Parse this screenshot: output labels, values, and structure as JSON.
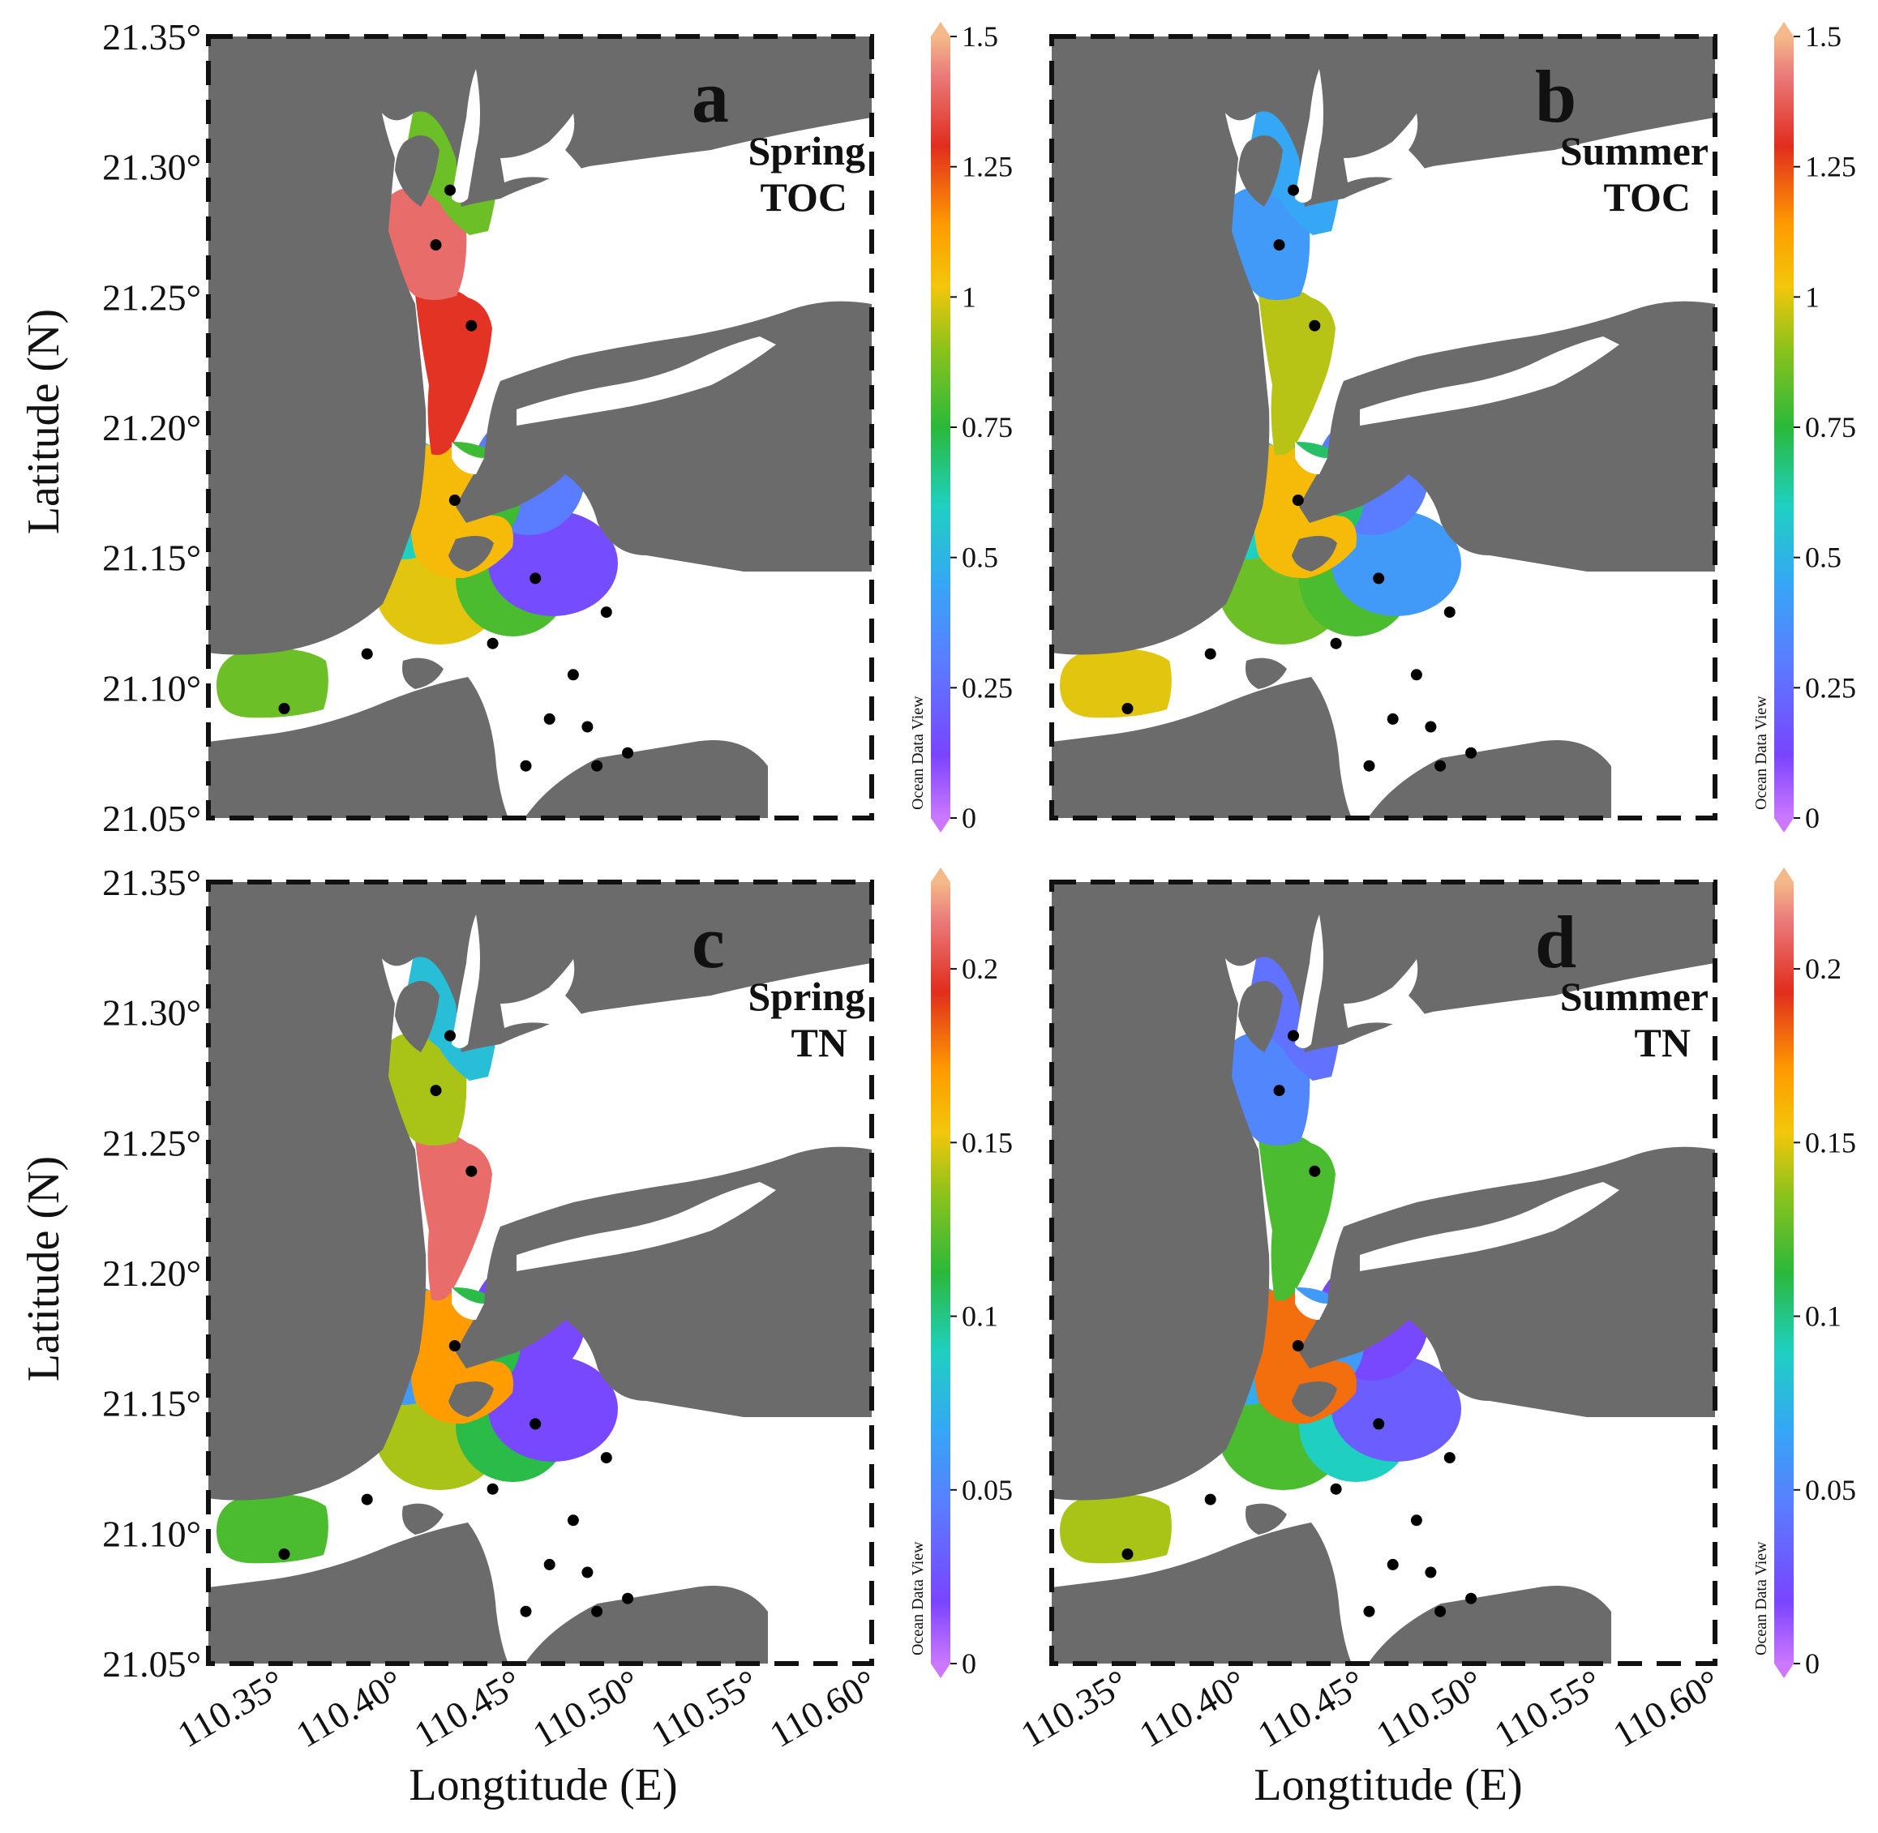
{
  "figure": {
    "y_axis_title": "Latitude (N)",
    "x_axis_title": "Longtitude (E)",
    "lat_ticks": [
      "21.35°",
      "21.30°",
      "21.25°",
      "21.20°",
      "21.15°",
      "21.10°",
      "21.05°"
    ],
    "lon_ticks": [
      "110.35°",
      "110.40°",
      "110.45°",
      "110.50°",
      "110.55°",
      "110.60°"
    ],
    "watermark": "Ocean Data View",
    "lat_range": [
      21.05,
      21.35
    ],
    "lon_range": [
      110.32,
      110.6
    ]
  },
  "panels": [
    {
      "letter": "a",
      "season": "Spring",
      "variable": "TOC",
      "colorbar": {
        "ticks": [
          "0",
          "0.25",
          "0.5",
          "0.75",
          "1",
          "1.25",
          "1.5"
        ],
        "min": 0,
        "max": 1.5
      },
      "zones": [
        {
          "name": "upper-north",
          "value": 0.85
        },
        {
          "name": "upper-west",
          "value": 1.4
        },
        {
          "name": "middle",
          "value": 1.3
        },
        {
          "name": "lower-channel",
          "value": 1.05
        },
        {
          "name": "bay-west",
          "value": 0.6
        },
        {
          "name": "bay-center",
          "value": 0.78
        },
        {
          "name": "bay-east",
          "value": 0.3
        },
        {
          "name": "bay-south-left",
          "value": 1.0
        },
        {
          "name": "bay-south-right",
          "value": 0.8
        },
        {
          "name": "far-east",
          "value": 0.15
        },
        {
          "name": "west-circle",
          "value": 0.4
        },
        {
          "name": "far-west",
          "value": 0.85
        }
      ]
    },
    {
      "letter": "b",
      "season": "Summer",
      "variable": "TOC",
      "colorbar": {
        "ticks": [
          "0",
          "0.25",
          "0.5",
          "0.75",
          "1",
          "1.25",
          "1.5"
        ],
        "min": 0,
        "max": 1.5
      },
      "zones": [
        {
          "name": "upper-north",
          "value": 0.45
        },
        {
          "name": "upper-west",
          "value": 0.4
        },
        {
          "name": "middle",
          "value": 0.95
        },
        {
          "name": "lower-channel",
          "value": 1.05
        },
        {
          "name": "bay-west",
          "value": 0.6
        },
        {
          "name": "bay-center",
          "value": 0.7
        },
        {
          "name": "bay-east",
          "value": 0.3
        },
        {
          "name": "bay-south-left",
          "value": 0.85
        },
        {
          "name": "bay-south-right",
          "value": 0.8
        },
        {
          "name": "far-east",
          "value": 0.4
        },
        {
          "name": "west-circle",
          "value": 0.45
        },
        {
          "name": "far-west",
          "value": 1.0
        }
      ]
    },
    {
      "letter": "c",
      "season": "Spring",
      "variable": "TN",
      "colorbar": {
        "ticks": [
          "0",
          "0.05",
          "0.1",
          "0.15",
          "0.2"
        ],
        "min": 0,
        "max": 0.225
      },
      "zones": [
        {
          "name": "upper-north",
          "value": 0.08
        },
        {
          "name": "upper-west",
          "value": 0.14
        },
        {
          "name": "middle",
          "value": 0.21
        },
        {
          "name": "lower-channel",
          "value": 0.17
        },
        {
          "name": "bay-west",
          "value": 0.06
        },
        {
          "name": "bay-center",
          "value": 0.11
        },
        {
          "name": "bay-east",
          "value": 0.02
        },
        {
          "name": "bay-south-left",
          "value": 0.14
        },
        {
          "name": "bay-south-right",
          "value": 0.11
        },
        {
          "name": "far-east",
          "value": 0.02
        },
        {
          "name": "west-circle",
          "value": 0.04
        },
        {
          "name": "far-west",
          "value": 0.12
        }
      ]
    },
    {
      "letter": "d",
      "season": "Summer",
      "variable": "TN",
      "colorbar": {
        "ticks": [
          "0",
          "0.05",
          "0.1",
          "0.15",
          "0.2"
        ],
        "min": 0,
        "max": 0.225
      },
      "zones": [
        {
          "name": "upper-north",
          "value": 0.04
        },
        {
          "name": "upper-west",
          "value": 0.05
        },
        {
          "name": "middle",
          "value": 0.12
        },
        {
          "name": "lower-channel",
          "value": 0.18
        },
        {
          "name": "bay-west",
          "value": 0.07
        },
        {
          "name": "bay-center",
          "value": 0.06
        },
        {
          "name": "bay-east",
          "value": 0.02
        },
        {
          "name": "bay-south-left",
          "value": 0.12
        },
        {
          "name": "bay-south-right",
          "value": 0.09
        },
        {
          "name": "far-east",
          "value": 0.03
        },
        {
          "name": "west-circle",
          "value": 0.03
        },
        {
          "name": "far-west",
          "value": 0.14
        }
      ]
    }
  ],
  "stations": [
    {
      "lon": 110.422,
      "lat": 21.291
    },
    {
      "lon": 110.416,
      "lat": 21.27
    },
    {
      "lon": 110.431,
      "lat": 21.239
    },
    {
      "lon": 110.424,
      "lat": 21.172
    },
    {
      "lon": 110.458,
      "lat": 21.142
    },
    {
      "lon": 110.488,
      "lat": 21.129
    },
    {
      "lon": 110.44,
      "lat": 21.117
    },
    {
      "lon": 110.474,
      "lat": 21.105
    },
    {
      "lon": 110.387,
      "lat": 21.113
    },
    {
      "lon": 110.352,
      "lat": 21.092
    },
    {
      "lon": 110.464,
      "lat": 21.088
    },
    {
      "lon": 110.48,
      "lat": 21.085
    },
    {
      "lon": 110.454,
      "lat": 21.07
    },
    {
      "lon": 110.484,
      "lat": 21.07
    },
    {
      "lon": 110.497,
      "lat": 21.075
    }
  ]
}
